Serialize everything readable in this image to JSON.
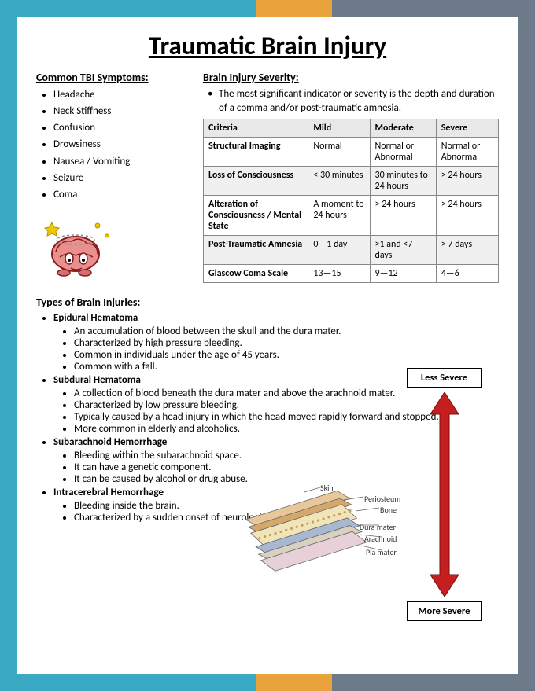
{
  "border_colors": {
    "left": "#3aa9c4",
    "right": "#6c7a8a",
    "top_seg1": "#3aa9c4",
    "top_seg2": "#e8a33d",
    "top_seg3": "#6c7a8a",
    "bottom_seg1": "#3aa9c4",
    "bottom_seg2": "#e8a33d",
    "bottom_seg3": "#6c7a8a"
  },
  "title": "Traumatic Brain Injury",
  "symptoms": {
    "heading": "Common TBI Symptoms:",
    "items": [
      "Headache",
      "Neck Stiffness",
      "Confusion",
      "Drowsiness",
      "Nausea / Vomiting",
      "Seizure",
      "Coma"
    ]
  },
  "severity": {
    "heading": "Brain Injury Severity:",
    "note": "The most significant indicator or severity is the depth and duration of a comma and/or post-traumatic amnesia.",
    "columns": [
      "Criteria",
      "Mild",
      "Moderate",
      "Severe"
    ],
    "rows": [
      [
        "Structural Imaging",
        "Normal",
        "Normal or Abnormal",
        "Normal or Abnormal"
      ],
      [
        "Loss of Consciousness",
        "< 30 minutes",
        "30 minutes to 24 hours",
        "> 24 hours"
      ],
      [
        "Alteration of Consciousness / Mental State",
        "A moment to 24 hours",
        "> 24 hours",
        "> 24 hours"
      ],
      [
        "Post-Traumatic Amnesia",
        "0—1 day",
        ">1 and <7 days",
        "> 7 days"
      ],
      [
        "Glascow Coma Scale",
        "13—15",
        "9—12",
        "4—6"
      ]
    ],
    "alt_rows": [
      false,
      true,
      false,
      true,
      false
    ]
  },
  "types": {
    "heading": "Types of Brain Injuries:",
    "items": [
      {
        "name": "Epidural Hematoma",
        "points": [
          "An accumulation of blood between the skull and the dura mater.",
          "Characterized by high pressure bleeding.",
          "Common in individuals under the age of 45 years.",
          "Common with a fall."
        ]
      },
      {
        "name": "Subdural Hematoma",
        "points": [
          "A collection of blood beneath the dura mater and above the arachnoid mater.",
          "Characterized by low pressure bleeding.",
          "Typically caused by a head injury in which the head moved rapidly forward and stopped.",
          "More common in elderly and alcoholics."
        ]
      },
      {
        "name": "Subarachnoid Hemorrhage",
        "points": [
          "Bleeding within the subarachnoid space.",
          "It can have a genetic component.",
          "It can be caused by alcohol or drug abuse."
        ]
      },
      {
        "name": "Intracerebral Hemorrhage",
        "points": [
          "Bleeding inside the brain.",
          "Characterized by a sudden onset of neurological deficit."
        ]
      }
    ]
  },
  "arrow": {
    "top_label": "Less Severe",
    "bottom_label": "More Severe",
    "color": "#c41e1e",
    "length": 260
  },
  "layers_diagram": {
    "labels": [
      "Skin",
      "Periosteum",
      "Bone",
      "Dura mater",
      "Arachnoid",
      "Pia mater"
    ],
    "colors": {
      "skin": "#e8c89a",
      "periosteum": "#d4a86a",
      "bone": "#f0e4b8",
      "dura": "#a8b8d0",
      "arachnoid": "#d8d0c0",
      "pia": "#e8d0d8"
    }
  },
  "brain_cartoon": {
    "body_color": "#e89090",
    "outline": "#8b1a1a",
    "star_color": "#f0c800",
    "eye_color": "#ffffff"
  }
}
